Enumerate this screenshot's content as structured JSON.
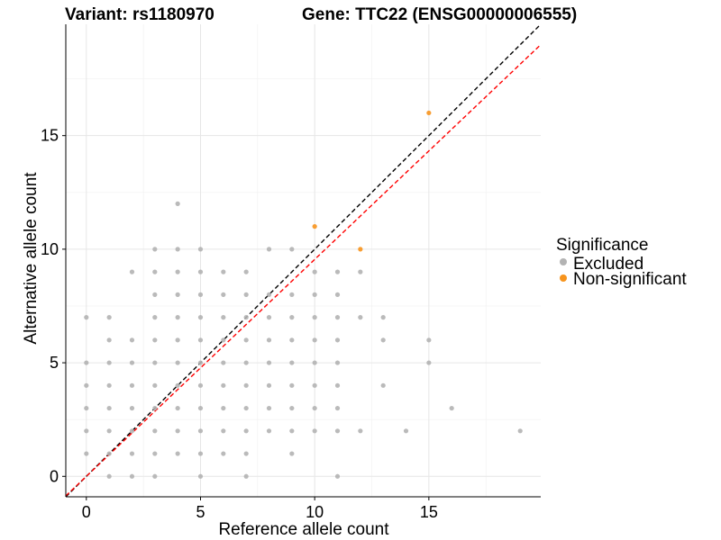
{
  "header": {
    "variant_title": "Variant: rs1180970",
    "gene_title": "Gene: TTC22 (ENSG00000006555)"
  },
  "legend": {
    "title": "Significance",
    "items": [
      {
        "label": "Excluded",
        "color": "#b3b3b3"
      },
      {
        "label": "Non-significant",
        "color": "#f7941d"
      }
    ]
  },
  "chart_data": {
    "type": "scatter",
    "xlabel": "Reference allele count",
    "ylabel": "Alternative allele count",
    "xlim": [
      -0.9,
      19.9
    ],
    "ylim": [
      -0.9,
      19.9
    ],
    "x_ticks": [
      0,
      5,
      10,
      15
    ],
    "y_ticks": [
      0,
      5,
      10,
      15
    ],
    "grid": true,
    "legend_position": "right",
    "series": [
      {
        "name": "Excluded",
        "color": "#b3b3b3",
        "points": [
          [
            0,
            1
          ],
          [
            0,
            2
          ],
          [
            0,
            3
          ],
          [
            0,
            4
          ],
          [
            0,
            5
          ],
          [
            0,
            7
          ],
          [
            1,
            0
          ],
          [
            1,
            1
          ],
          [
            1,
            2
          ],
          [
            1,
            3
          ],
          [
            1,
            4
          ],
          [
            1,
            5
          ],
          [
            1,
            6
          ],
          [
            1,
            7
          ],
          [
            2,
            0
          ],
          [
            2,
            1
          ],
          [
            2,
            2
          ],
          [
            2,
            3
          ],
          [
            2,
            4
          ],
          [
            2,
            5
          ],
          [
            2,
            6
          ],
          [
            2,
            9
          ],
          [
            3,
            0
          ],
          [
            3,
            1
          ],
          [
            3,
            2
          ],
          [
            3,
            3
          ],
          [
            3,
            4
          ],
          [
            3,
            5
          ],
          [
            3,
            6
          ],
          [
            3,
            7
          ],
          [
            3,
            8
          ],
          [
            3,
            9
          ],
          [
            3,
            10
          ],
          [
            4,
            1
          ],
          [
            4,
            2
          ],
          [
            4,
            3
          ],
          [
            4,
            4
          ],
          [
            4,
            5
          ],
          [
            4,
            6
          ],
          [
            4,
            7
          ],
          [
            4,
            8
          ],
          [
            4,
            9
          ],
          [
            4,
            10
          ],
          [
            4,
            12
          ],
          [
            5,
            0
          ],
          [
            5,
            1
          ],
          [
            5,
            2
          ],
          [
            5,
            3
          ],
          [
            5,
            4
          ],
          [
            5,
            5
          ],
          [
            5,
            6
          ],
          [
            5,
            7
          ],
          [
            5,
            8
          ],
          [
            5,
            9
          ],
          [
            5,
            10
          ],
          [
            6,
            1
          ],
          [
            6,
            2
          ],
          [
            6,
            3
          ],
          [
            6,
            4
          ],
          [
            6,
            5
          ],
          [
            6,
            6
          ],
          [
            6,
            7
          ],
          [
            6,
            8
          ],
          [
            6,
            9
          ],
          [
            7,
            0
          ],
          [
            7,
            1
          ],
          [
            7,
            2
          ],
          [
            7,
            3
          ],
          [
            7,
            4
          ],
          [
            7,
            5
          ],
          [
            7,
            6
          ],
          [
            7,
            7
          ],
          [
            7,
            8
          ],
          [
            7,
            9
          ],
          [
            8,
            2
          ],
          [
            8,
            3
          ],
          [
            8,
            4
          ],
          [
            8,
            5
          ],
          [
            8,
            6
          ],
          [
            8,
            7
          ],
          [
            8,
            8
          ],
          [
            8,
            10
          ],
          [
            9,
            1
          ],
          [
            9,
            2
          ],
          [
            9,
            3
          ],
          [
            9,
            4
          ],
          [
            9,
            5
          ],
          [
            9,
            6
          ],
          [
            9,
            7
          ],
          [
            9,
            8
          ],
          [
            9,
            10
          ],
          [
            10,
            2
          ],
          [
            10,
            3
          ],
          [
            10,
            4
          ],
          [
            10,
            5
          ],
          [
            10,
            6
          ],
          [
            10,
            7
          ],
          [
            10,
            8
          ],
          [
            10,
            9
          ],
          [
            11,
            0
          ],
          [
            11,
            2
          ],
          [
            11,
            3
          ],
          [
            11,
            4
          ],
          [
            11,
            5
          ],
          [
            11,
            6
          ],
          [
            11,
            7
          ],
          [
            11,
            8
          ],
          [
            11,
            9
          ],
          [
            12,
            2
          ],
          [
            12,
            7
          ],
          [
            12,
            9
          ],
          [
            13,
            4
          ],
          [
            13,
            6
          ],
          [
            13,
            7
          ],
          [
            14,
            2
          ],
          [
            15,
            5
          ],
          [
            15,
            6
          ],
          [
            16,
            3
          ],
          [
            19,
            2
          ]
        ]
      },
      {
        "name": "Non-significant",
        "color": "#f7941d",
        "points": [
          [
            10,
            11
          ],
          [
            12,
            10
          ],
          [
            15,
            16
          ]
        ]
      }
    ],
    "reference_lines": [
      {
        "slope": 1,
        "intercept": 0,
        "color": "#000000",
        "style": "dashed"
      },
      {
        "slope": 0.955,
        "intercept": 0,
        "color": "#ff0000",
        "style": "dashed"
      }
    ]
  }
}
